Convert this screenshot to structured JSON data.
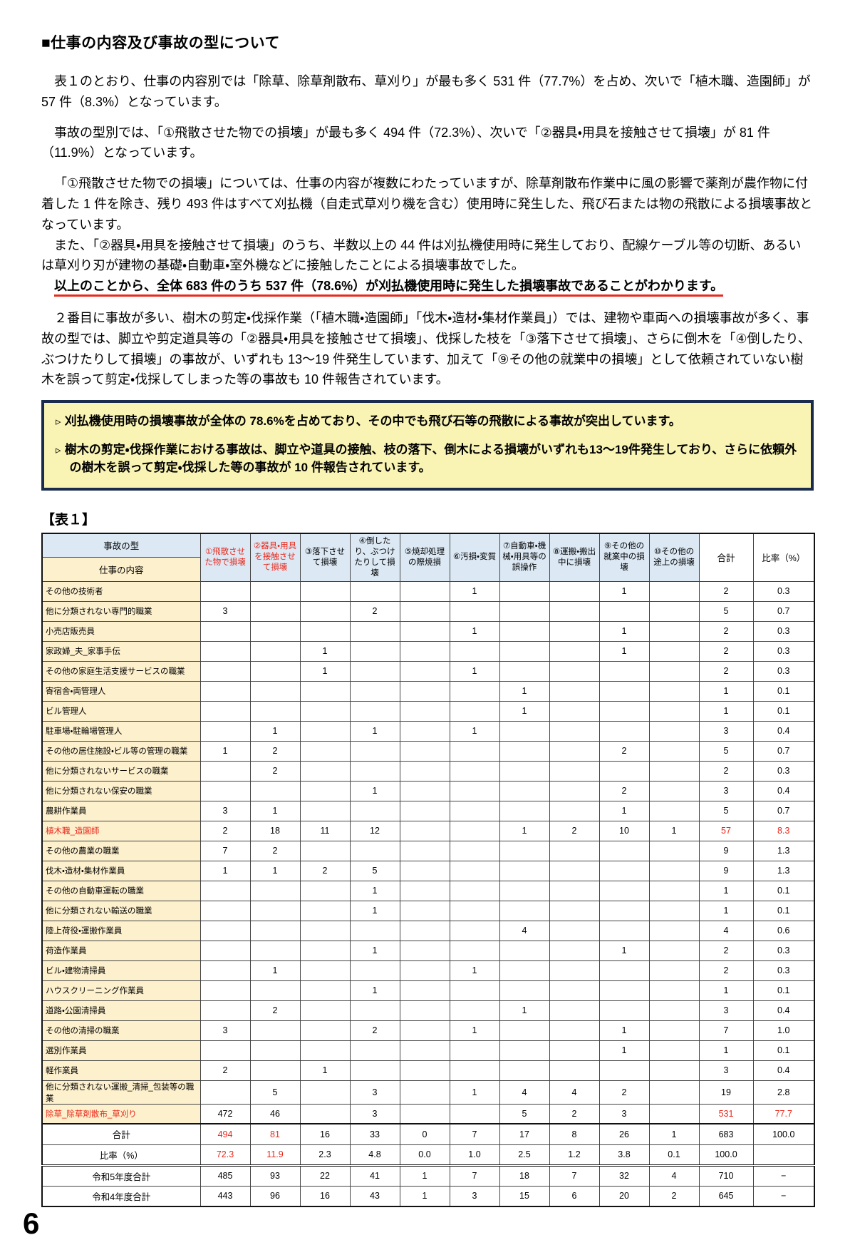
{
  "page": {
    "heading": "■仕事の内容及び事故の型について",
    "paragraphs": [
      "表１のとおり、仕事の内容別では「除草、除草剤散布、草刈り」が最も多く 531 件（77.7%）を占め、次いで「植木職、造園師」が 57 件（8.3%）となっています。",
      "事故の型別では、「①飛散させた物での損壊」が最も多く 494 件（72.3%）、次いで「②器具・用具を接触させて損壊」が 81 件（11.9%）となっています。",
      "「①飛散させた物での損壊」については、仕事の内容が複数にわたっていますが、除草剤散布作業中に風の影響で薬剤が農作物に付着した 1 件を除き、残り 493 件はすべて刈払機（自走式草刈り機を含む）使用時に発生した、飛び石または物の飛散による損壊事故となっています。",
      "また、「②器具・用具を接触させて損壊」のうち、半数以上の 44 件は刈払機使用時に発生しており、配線ケーブル等の切断、あるいは草刈り刃が建物の基礎・自動車・室外機などに接触したことによる損壊事故でした。",
      "２番目に事故が多い、樹木の剪定・伐採作業（「植木職・造園師」「伐木・造材・集材作業員」）では、建物や車両への損壊事故が多く、事故の型では、脚立や剪定道具等の「②器具・用具を接触させて損壊」、伐採した枝を「③落下させて損壊」、さらに倒木を「④倒したり、ぶつけたりして損壊」の事故が、いずれも 13～19 件発生しています、加えて「⑨その他の就業中の損壊」として依頼されていない樹木を誤って剪定・伐採してしまった等の事故も 10 件報告されています。"
    ],
    "underline": "以上のことから、全体 683 件のうち 537 件（78.6%）が刈払機使用時に発生した損壊事故であることがわかります。",
    "callout": {
      "marker": "▹",
      "items": [
        "刈払機使用時の損壊事故が全体の 78.6%を占めており、その中でも飛び石等の飛散による事故が突出しています。",
        "樹木の剪定・伐採作業における事故は、脚立や道具の接触、枝の落下、倒木による損壊がいずれも13～19件発生しており、さらに依頼外の樹木を誤って剪定・伐採した等の事故が 10 件報告されています。"
      ]
    },
    "table_label": "【表１】",
    "number": "6"
  },
  "colors": {
    "accent_red": "#e8291c",
    "header_blue": "#dce9f5",
    "row_label_cream": "#fdf0cd",
    "callout_bg": "#f9f4b4",
    "callout_border": "#1b2b4e"
  },
  "table": {
    "corner": {
      "top": "事故の型",
      "bottom": "仕事の内容"
    },
    "columns": [
      "①飛散させた物で損壊",
      "②器具・用具を接触させて損壊",
      "③落下させて損壊",
      "④倒したり、ぶつけたりして損壊",
      "⑤焼却処理の際焼損",
      "⑥汚損・変質",
      "⑦自動車・機械・用具等の誤操作",
      "⑧運搬・搬出中に損壊",
      "⑨その他の就業中の損壊",
      "⑩その他の途上の損壊",
      "合計",
      "比率（%）"
    ],
    "red_columns": [
      0,
      1
    ],
    "rows": [
      {
        "label": "その他の技術者",
        "values": [
          "",
          "",
          "",
          "",
          "",
          "1",
          "",
          "",
          "1",
          "",
          "2",
          "0.3"
        ]
      },
      {
        "label": "他に分類されない専門的職業",
        "values": [
          "3",
          "",
          "",
          "2",
          "",
          "",
          "",
          "",
          "",
          "",
          "5",
          "0.7"
        ]
      },
      {
        "label": "小売店販売員",
        "values": [
          "",
          "",
          "",
          "",
          "",
          "1",
          "",
          "",
          "1",
          "",
          "2",
          "0.3"
        ]
      },
      {
        "label": "家政婦_夫_家事手伝",
        "values": [
          "",
          "",
          "1",
          "",
          "",
          "",
          "",
          "",
          "1",
          "",
          "2",
          "0.3"
        ]
      },
      {
        "label": "その他の家庭生活支援サービスの職業",
        "values": [
          "",
          "",
          "1",
          "",
          "",
          "1",
          "",
          "",
          "",
          "",
          "2",
          "0.3"
        ]
      },
      {
        "label": "寄宿舎・両管理人",
        "values": [
          "",
          "",
          "",
          "",
          "",
          "",
          "1",
          "",
          "",
          "",
          "1",
          "0.1"
        ]
      },
      {
        "label": "ビル管理人",
        "values": [
          "",
          "",
          "",
          "",
          "",
          "",
          "1",
          "",
          "",
          "",
          "1",
          "0.1"
        ]
      },
      {
        "label": "駐車場・駐輪場管理人",
        "values": [
          "",
          "1",
          "",
          "1",
          "",
          "1",
          "",
          "",
          "",
          "",
          "3",
          "0.4"
        ]
      },
      {
        "label": "その他の居住施設・ビル等の管理の職業",
        "values": [
          "1",
          "2",
          "",
          "",
          "",
          "",
          "",
          "",
          "2",
          "",
          "5",
          "0.7"
        ]
      },
      {
        "label": "他に分類されないサービスの職業",
        "values": [
          "",
          "2",
          "",
          "",
          "",
          "",
          "",
          "",
          "",
          "",
          "2",
          "0.3"
        ]
      },
      {
        "label": "他に分類されない保安の職業",
        "values": [
          "",
          "",
          "",
          "1",
          "",
          "",
          "",
          "",
          "2",
          "",
          "3",
          "0.4"
        ]
      },
      {
        "label": "農耕作業員",
        "values": [
          "3",
          "1",
          "",
          "",
          "",
          "",
          "",
          "",
          "1",
          "",
          "5",
          "0.7"
        ]
      },
      {
        "label": "植木職_造園師",
        "label_red": true,
        "red": [
          10,
          11
        ],
        "values": [
          "2",
          "18",
          "11",
          "12",
          "",
          "",
          "1",
          "2",
          "10",
          "1",
          "57",
          "8.3"
        ]
      },
      {
        "label": "その他の農業の職業",
        "values": [
          "7",
          "2",
          "",
          "",
          "",
          "",
          "",
          "",
          "",
          "",
          "9",
          "1.3"
        ]
      },
      {
        "label": "伐木・造材・集材作業員",
        "values": [
          "1",
          "1",
          "2",
          "5",
          "",
          "",
          "",
          "",
          "",
          "",
          "9",
          "1.3"
        ]
      },
      {
        "label": "その他の自動車運転の職業",
        "values": [
          "",
          "",
          "",
          "1",
          "",
          "",
          "",
          "",
          "",
          "",
          "1",
          "0.1"
        ]
      },
      {
        "label": "他に分類されない輸送の職業",
        "values": [
          "",
          "",
          "",
          "1",
          "",
          "",
          "",
          "",
          "",
          "",
          "1",
          "0.1"
        ]
      },
      {
        "label": "陸上荷役・運搬作業員",
        "values": [
          "",
          "",
          "",
          "",
          "",
          "",
          "4",
          "",
          "",
          "",
          "4",
          "0.6"
        ]
      },
      {
        "label": "荷造作業員",
        "values": [
          "",
          "",
          "",
          "1",
          "",
          "",
          "",
          "",
          "1",
          "",
          "2",
          "0.3"
        ]
      },
      {
        "label": "ビル・建物清掃員",
        "values": [
          "",
          "1",
          "",
          "",
          "",
          "1",
          "",
          "",
          "",
          "",
          "2",
          "0.3"
        ]
      },
      {
        "label": "ハウスクリーニング作業員",
        "values": [
          "",
          "",
          "",
          "1",
          "",
          "",
          "",
          "",
          "",
          "",
          "1",
          "0.1"
        ]
      },
      {
        "label": "道路・公園清掃員",
        "values": [
          "",
          "2",
          "",
          "",
          "",
          "",
          "1",
          "",
          "",
          "",
          "3",
          "0.4"
        ]
      },
      {
        "label": "その他の清掃の職業",
        "values": [
          "3",
          "",
          "",
          "2",
          "",
          "1",
          "",
          "",
          "1",
          "",
          "7",
          "1.0"
        ]
      },
      {
        "label": "選別作業員",
        "values": [
          "",
          "",
          "",
          "",
          "",
          "",
          "",
          "",
          "1",
          "",
          "1",
          "0.1"
        ]
      },
      {
        "label": "軽作業員",
        "values": [
          "2",
          "",
          "1",
          "",
          "",
          "",
          "",
          "",
          "",
          "",
          "3",
          "0.4"
        ]
      },
      {
        "label": "他に分類されない運搬_清掃_包装等の職業",
        "values": [
          "",
          "5",
          "",
          "3",
          "",
          "1",
          "4",
          "4",
          "2",
          "",
          "19",
          "2.8"
        ]
      },
      {
        "label": "除草_除草剤散布_草刈り",
        "label_red": true,
        "red": [
          10,
          11
        ],
        "values": [
          "472",
          "46",
          "",
          "3",
          "",
          "",
          "5",
          "2",
          "3",
          "",
          "531",
          "77.7"
        ]
      },
      {
        "label": "合計",
        "sum": true,
        "cls": "total",
        "red": [
          0,
          1
        ],
        "values": [
          "494",
          "81",
          "16",
          "33",
          "0",
          "7",
          "17",
          "8",
          "26",
          "1",
          "683",
          "100.0"
        ]
      },
      {
        "label": "比率（%）",
        "sum": true,
        "cls": "pct",
        "red": [
          0,
          1
        ],
        "values": [
          "72.3",
          "11.9",
          "2.3",
          "4.8",
          "0.0",
          "1.0",
          "2.5",
          "1.2",
          "3.8",
          "0.1",
          "100.0",
          ""
        ]
      },
      {
        "label": "令和5年度合計",
        "sum": true,
        "cls": "y5",
        "values": [
          "485",
          "93",
          "22",
          "41",
          "1",
          "7",
          "18",
          "7",
          "32",
          "4",
          "710",
          "−"
        ]
      },
      {
        "label": "令和4年度合計",
        "sum": true,
        "cls": "y4",
        "values": [
          "443",
          "96",
          "16",
          "43",
          "1",
          "3",
          "15",
          "6",
          "20",
          "2",
          "645",
          "−"
        ]
      }
    ]
  }
}
